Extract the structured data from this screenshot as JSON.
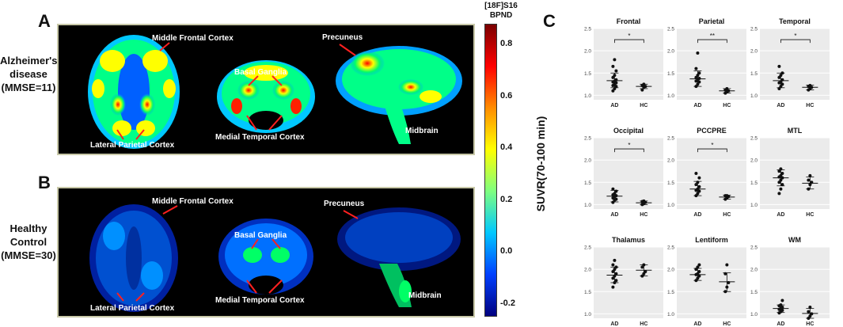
{
  "panel_a": {
    "letter": "A",
    "row_label": [
      "Alzheimer's",
      "disease",
      "(MMSE=11)"
    ],
    "annotations": {
      "middle_frontal": "Middle Frontal Cortex",
      "basal_ganglia": "Basal Ganglia",
      "precuneus": "Precuneus",
      "lateral_parietal": "Lateral  Parietal Cortex",
      "medial_temporal": "Medial Temporal Cortex",
      "midbrain": "Midbrain"
    }
  },
  "panel_b": {
    "letter": "B",
    "row_label": [
      "Healthy",
      "Control",
      "(MMSE=30)"
    ],
    "annotations": {
      "middle_frontal": "Middle Frontal Cortex",
      "basal_ganglia": "Basal Ganglia",
      "precuneus": "Precuneus",
      "lateral_parietal": "Lateral  Parietal Cortex",
      "medial_temporal": "Medial Temporal  Cortex",
      "midbrain": "Midbrain"
    }
  },
  "colorbar": {
    "title_line1": "[18F]S16",
    "title_line2": "BPND",
    "ticks": [
      "0.8",
      "0.6",
      "0.4",
      "0.2",
      "0.0",
      "-0.2"
    ],
    "colors": [
      "#7a0000",
      "#ff0000",
      "#ff8c00",
      "#ffff00",
      "#7fff7f",
      "#00c8ff",
      "#0040ff",
      "#00007f"
    ]
  },
  "panel_c": {
    "letter": "C",
    "ylabel": "SUVR(70-100 min)"
  },
  "chart_data": [
    {
      "type": "scatter",
      "title": "Frontal",
      "categories": [
        "AD",
        "HC"
      ],
      "ylim": [
        0.9,
        2.5
      ],
      "yticks": [
        "1.0",
        "1.5",
        "2.0",
        "2.5"
      ],
      "AD": [
        1.1,
        1.15,
        1.2,
        1.22,
        1.25,
        1.28,
        1.3,
        1.32,
        1.35,
        1.4,
        1.45,
        1.55,
        1.65,
        1.8
      ],
      "HC": [
        1.12,
        1.18,
        1.2,
        1.22,
        1.25
      ],
      "ad_mean": 1.33,
      "ad_sd": [
        1.17,
        1.5
      ],
      "hc_mean": 1.2,
      "hc_sd": [
        1.15,
        1.25
      ],
      "sig": "*"
    },
    {
      "type": "scatter",
      "title": "Parietal",
      "categories": [
        "AD",
        "HC"
      ],
      "ylim": [
        0.9,
        2.5
      ],
      "yticks": [
        "1.0",
        "1.5",
        "2.0",
        "2.5"
      ],
      "AD": [
        1.2,
        1.25,
        1.3,
        1.32,
        1.35,
        1.38,
        1.4,
        1.45,
        1.5,
        1.6,
        1.95
      ],
      "HC": [
        1.05,
        1.08,
        1.1,
        1.12,
        1.15
      ],
      "ad_mean": 1.37,
      "ad_sd": [
        1.2,
        1.55
      ],
      "hc_mean": 1.1,
      "hc_sd": [
        1.05,
        1.15
      ],
      "sig": "**"
    },
    {
      "type": "scatter",
      "title": "Temporal",
      "categories": [
        "AD",
        "HC"
      ],
      "ylim": [
        0.9,
        2.5
      ],
      "yticks": [
        "1.0",
        "1.5",
        "2.0",
        "2.5"
      ],
      "AD": [
        1.15,
        1.2,
        1.25,
        1.28,
        1.3,
        1.35,
        1.4,
        1.45,
        1.5,
        1.65
      ],
      "HC": [
        1.12,
        1.15,
        1.18,
        1.2,
        1.22
      ],
      "ad_mean": 1.33,
      "ad_sd": [
        1.17,
        1.5
      ],
      "hc_mean": 1.18,
      "hc_sd": [
        1.12,
        1.23
      ],
      "sig": "*"
    },
    {
      "type": "scatter",
      "title": "Occipital",
      "categories": [
        "AD",
        "HC"
      ],
      "ylim": [
        0.9,
        2.5
      ],
      "yticks": [
        "1.0",
        "1.5",
        "2.0",
        "2.5"
      ],
      "AD": [
        1.05,
        1.1,
        1.12,
        1.15,
        1.18,
        1.2,
        1.22,
        1.25,
        1.3,
        1.35
      ],
      "HC": [
        1.0,
        1.02,
        1.05,
        1.07,
        1.08
      ],
      "ad_mean": 1.19,
      "ad_sd": [
        1.06,
        1.32
      ],
      "hc_mean": 1.04,
      "hc_sd": [
        1.0,
        1.08
      ],
      "sig": "*"
    },
    {
      "type": "scatter",
      "title": "PCCPRE",
      "categories": [
        "AD",
        "HC"
      ],
      "ylim": [
        0.9,
        2.5
      ],
      "yticks": [
        "1.0",
        "1.5",
        "2.0",
        "2.5"
      ],
      "AD": [
        1.2,
        1.25,
        1.3,
        1.32,
        1.35,
        1.4,
        1.45,
        1.5,
        1.6,
        1.7
      ],
      "HC": [
        1.12,
        1.15,
        1.18,
        1.2,
        1.2
      ],
      "ad_mean": 1.35,
      "ad_sd": [
        1.2,
        1.52
      ],
      "hc_mean": 1.17,
      "hc_sd": [
        1.12,
        1.21
      ],
      "sig": "*"
    },
    {
      "type": "scatter",
      "title": "MTL",
      "categories": [
        "AD",
        "HC"
      ],
      "ylim": [
        0.9,
        2.5
      ],
      "yticks": [
        "1.0",
        "1.5",
        "2.0",
        "2.5"
      ],
      "AD": [
        1.25,
        1.35,
        1.45,
        1.5,
        1.55,
        1.6,
        1.62,
        1.65,
        1.7,
        1.75,
        1.8
      ],
      "HC": [
        1.35,
        1.45,
        1.5,
        1.55,
        1.65
      ],
      "ad_mean": 1.6,
      "ad_sd": [
        1.42,
        1.78
      ],
      "hc_mean": 1.48,
      "hc_sd": [
        1.35,
        1.62
      ],
      "sig": ""
    },
    {
      "type": "scatter",
      "title": "Thalamus",
      "categories": [
        "AD",
        "HC"
      ],
      "ylim": [
        0.9,
        2.5
      ],
      "yticks": [
        "1.0",
        "1.5",
        "2.0",
        "2.5"
      ],
      "AD": [
        1.6,
        1.7,
        1.75,
        1.8,
        1.85,
        1.9,
        1.95,
        2.0,
        2.05,
        2.1,
        2.2
      ],
      "HC": [
        1.85,
        1.9,
        1.95,
        2.05,
        2.1
      ],
      "ad_mean": 1.87,
      "ad_sd": [
        1.7,
        2.05
      ],
      "hc_mean": 1.98,
      "hc_sd": [
        1.85,
        2.1
      ],
      "sig": ""
    },
    {
      "type": "scatter",
      "title": "Lentiform",
      "categories": [
        "AD",
        "HC"
      ],
      "ylim": [
        0.9,
        2.5
      ],
      "yticks": [
        "1.0",
        "1.5",
        "2.0",
        "2.5"
      ],
      "AD": [
        1.75,
        1.8,
        1.85,
        1.88,
        1.9,
        1.95,
        2.0,
        2.05,
        2.1
      ],
      "HC": [
        1.5,
        1.6,
        1.7,
        1.9,
        2.1
      ],
      "ad_mean": 1.88,
      "ad_sd": [
        1.75,
        2.02
      ],
      "hc_mean": 1.72,
      "hc_sd": [
        1.5,
        1.92
      ],
      "sig": ""
    },
    {
      "type": "scatter",
      "title": "WM",
      "categories": [
        "AD",
        "HC"
      ],
      "ylim": [
        0.9,
        2.5
      ],
      "yticks": [
        "1.0",
        "1.5",
        "2.0",
        "2.5"
      ],
      "AD": [
        1.02,
        1.05,
        1.08,
        1.1,
        1.12,
        1.15,
        1.18,
        1.2,
        1.3
      ],
      "HC": [
        0.9,
        0.95,
        1.0,
        1.05,
        1.15
      ],
      "ad_mean": 1.12,
      "ad_sd": [
        1.03,
        1.2
      ],
      "hc_mean": 1.01,
      "hc_sd": [
        0.9,
        1.12
      ],
      "sig": ""
    }
  ]
}
